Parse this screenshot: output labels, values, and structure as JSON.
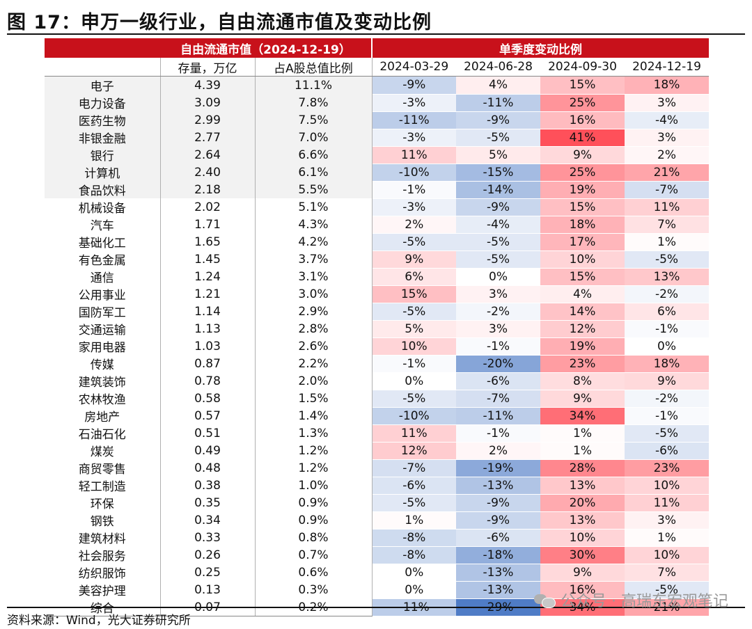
{
  "title": "图 17：申万一级行业，自由流通市值及变动比例",
  "source": "资料来源：Wind，光大证券研究所",
  "watermark": "公众号 · 高瑞东宏观笔记",
  "colors": {
    "header_red": "#c8111b",
    "heat_positive": "#f0505a",
    "heat_negative": "#4f7cc6"
  },
  "chart_data": {
    "type": "table",
    "group_headers": [
      "自由流通市值（2024-12-19）",
      "单季度变动比例"
    ],
    "columns": [
      "存量，万亿",
      "占A股总值比例",
      "2024-03-29",
      "2024-06-28",
      "2024-09-30",
      "2024-12-19"
    ],
    "heatmap_scale": {
      "min": -29,
      "max": 41,
      "negative_color": "blue",
      "positive_color": "red"
    },
    "rows": [
      {
        "industry": "电子",
        "stock": "4.39",
        "share": "11.1%",
        "changes": [
          "-9%",
          "4%",
          "15%",
          "18%"
        ]
      },
      {
        "industry": "电力设备",
        "stock": "3.09",
        "share": "7.8%",
        "changes": [
          "-3%",
          "-11%",
          "25%",
          "3%"
        ]
      },
      {
        "industry": "医药生物",
        "stock": "2.99",
        "share": "7.5%",
        "changes": [
          "-11%",
          "-9%",
          "16%",
          "-4%"
        ]
      },
      {
        "industry": "非银金融",
        "stock": "2.77",
        "share": "7.0%",
        "changes": [
          "-3%",
          "-5%",
          "41%",
          "3%"
        ]
      },
      {
        "industry": "银行",
        "stock": "2.64",
        "share": "6.6%",
        "changes": [
          "11%",
          "5%",
          "9%",
          "2%"
        ]
      },
      {
        "industry": "计算机",
        "stock": "2.40",
        "share": "6.1%",
        "changes": [
          "-10%",
          "-15%",
          "25%",
          "21%"
        ]
      },
      {
        "industry": "食品饮料",
        "stock": "2.18",
        "share": "5.5%",
        "changes": [
          "-1%",
          "-14%",
          "19%",
          "-7%"
        ]
      },
      {
        "industry": "机械设备",
        "stock": "2.02",
        "share": "5.1%",
        "changes": [
          "-3%",
          "-9%",
          "15%",
          "11%"
        ]
      },
      {
        "industry": "汽车",
        "stock": "1.71",
        "share": "4.3%",
        "changes": [
          "2%",
          "-4%",
          "18%",
          "7%"
        ]
      },
      {
        "industry": "基础化工",
        "stock": "1.65",
        "share": "4.2%",
        "changes": [
          "-5%",
          "-5%",
          "17%",
          "1%"
        ]
      },
      {
        "industry": "有色金属",
        "stock": "1.45",
        "share": "3.7%",
        "changes": [
          "9%",
          "-5%",
          "10%",
          "-5%"
        ]
      },
      {
        "industry": "通信",
        "stock": "1.24",
        "share": "3.1%",
        "changes": [
          "6%",
          "0%",
          "15%",
          "13%"
        ]
      },
      {
        "industry": "公用事业",
        "stock": "1.21",
        "share": "3.0%",
        "changes": [
          "15%",
          "3%",
          "4%",
          "-2%"
        ]
      },
      {
        "industry": "国防军工",
        "stock": "1.14",
        "share": "2.9%",
        "changes": [
          "-5%",
          "-2%",
          "14%",
          "6%"
        ]
      },
      {
        "industry": "交通运输",
        "stock": "1.13",
        "share": "2.8%",
        "changes": [
          "5%",
          "3%",
          "12%",
          "-1%"
        ]
      },
      {
        "industry": "家用电器",
        "stock": "1.03",
        "share": "2.6%",
        "changes": [
          "10%",
          "-1%",
          "19%",
          "0%"
        ]
      },
      {
        "industry": "传媒",
        "stock": "0.87",
        "share": "2.2%",
        "changes": [
          "-1%",
          "-20%",
          "23%",
          "18%"
        ]
      },
      {
        "industry": "建筑装饰",
        "stock": "0.78",
        "share": "2.0%",
        "changes": [
          "0%",
          "-6%",
          "8%",
          "9%"
        ]
      },
      {
        "industry": "农林牧渔",
        "stock": "0.58",
        "share": "1.5%",
        "changes": [
          "-5%",
          "-7%",
          "9%",
          "-2%"
        ]
      },
      {
        "industry": "房地产",
        "stock": "0.57",
        "share": "1.4%",
        "changes": [
          "-10%",
          "-11%",
          "34%",
          "-1%"
        ]
      },
      {
        "industry": "石油石化",
        "stock": "0.51",
        "share": "1.3%",
        "changes": [
          "11%",
          "-1%",
          "1%",
          "-5%"
        ]
      },
      {
        "industry": "煤炭",
        "stock": "0.49",
        "share": "1.2%",
        "changes": [
          "12%",
          "2%",
          "1%",
          "-6%"
        ]
      },
      {
        "industry": "商贸零售",
        "stock": "0.48",
        "share": "1.2%",
        "changes": [
          "-7%",
          "-19%",
          "28%",
          "23%"
        ]
      },
      {
        "industry": "轻工制造",
        "stock": "0.38",
        "share": "1.0%",
        "changes": [
          "-6%",
          "-13%",
          "13%",
          "10%"
        ]
      },
      {
        "industry": "环保",
        "stock": "0.35",
        "share": "0.9%",
        "changes": [
          "-5%",
          "-9%",
          "20%",
          "11%"
        ]
      },
      {
        "industry": "钢铁",
        "stock": "0.34",
        "share": "0.9%",
        "changes": [
          "1%",
          "-9%",
          "13%",
          "3%"
        ]
      },
      {
        "industry": "建筑材料",
        "stock": "0.33",
        "share": "0.8%",
        "changes": [
          "-8%",
          "-6%",
          "10%",
          "1%"
        ]
      },
      {
        "industry": "社会服务",
        "stock": "0.26",
        "share": "0.7%",
        "changes": [
          "-8%",
          "-18%",
          "30%",
          "10%"
        ]
      },
      {
        "industry": "纺织服饰",
        "stock": "0.25",
        "share": "0.6%",
        "changes": [
          "0%",
          "-13%",
          "9%",
          "7%"
        ]
      },
      {
        "industry": "美容护理",
        "stock": "0.13",
        "share": "0.3%",
        "changes": [
          "0%",
          "-13%",
          "16%",
          "-5%"
        ]
      },
      {
        "industry": "综合",
        "stock": "0.07",
        "share": "0.2%",
        "changes": [
          "-11%",
          "-29%",
          "34%",
          "21%"
        ]
      }
    ],
    "highlighted_top_rows": 7
  }
}
